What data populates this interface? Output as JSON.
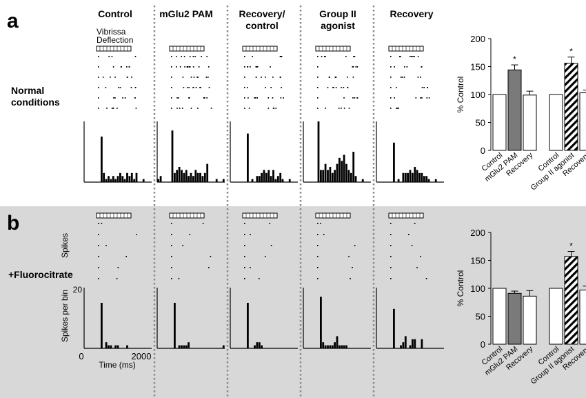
{
  "panels": {
    "a": {
      "letter": "a",
      "row_label_lines": [
        "Normal",
        "conditions"
      ]
    },
    "b": {
      "letter": "b",
      "row_label": "+Fluorocitrate"
    }
  },
  "columns": [
    {
      "title_lines": [
        "Control"
      ]
    },
    {
      "title_lines": [
        "mGlu2 PAM"
      ]
    },
    {
      "title_lines": [
        "Recovery/",
        "control"
      ]
    },
    {
      "title_lines": [
        "Group II",
        "agonist"
      ]
    },
    {
      "title_lines": [
        "Recovery"
      ]
    }
  ],
  "stimulus_label_lines": [
    "Vibrissa",
    "Deflection"
  ],
  "axes_labels": {
    "raster_y": "Spikes",
    "psth_y": "Spikes per bin",
    "psth_y_max": "20",
    "psth_x_min": "0",
    "psth_x_max": "2000",
    "psth_x": "Time (ms)"
  },
  "chart_data": [
    {
      "id": "a",
      "type": "bar",
      "ylabel": "% Control",
      "ylim": [
        0,
        200
      ],
      "yticks": [
        "0",
        "50",
        "100",
        "150",
        "200"
      ],
      "groups": [
        {
          "categories": [
            "Control",
            "mGlu2 PAM",
            "Recovery"
          ],
          "values": [
            100,
            144,
            99
          ],
          "errors": [
            0,
            9,
            7
          ],
          "significant": [
            false,
            true,
            false
          ],
          "fills": [
            "white",
            "gray",
            "white"
          ]
        },
        {
          "categories": [
            "Control",
            "Group II agonist",
            "Recovery"
          ],
          "values": [
            100,
            156,
            103
          ],
          "errors": [
            0,
            11,
            5
          ],
          "significant": [
            false,
            true,
            false
          ],
          "fills": [
            "white",
            "hatch",
            "white"
          ]
        }
      ],
      "significance_marker": "*"
    },
    {
      "id": "b",
      "type": "bar",
      "ylabel": "% Control",
      "ylim": [
        0,
        200
      ],
      "yticks": [
        "0",
        "50",
        "100",
        "150",
        "200"
      ],
      "groups": [
        {
          "categories": [
            "Control",
            "mGlu2 PAM",
            "Recovery"
          ],
          "values": [
            100,
            91,
            86
          ],
          "errors": [
            0,
            4,
            10
          ],
          "significant": [
            false,
            false,
            false
          ],
          "fills": [
            "white",
            "gray",
            "white"
          ]
        },
        {
          "categories": [
            "Control",
            "Group II agonist",
            "Recovery"
          ],
          "values": [
            100,
            157,
            97
          ],
          "errors": [
            0,
            9,
            7
          ],
          "significant": [
            false,
            true,
            false
          ],
          "fills": [
            "white",
            "hatch",
            "white"
          ]
        }
      ],
      "significance_marker": "*"
    },
    {
      "id": "psth-a",
      "type": "bar",
      "xlim": [
        0,
        2000
      ],
      "ylim": [
        0,
        20
      ],
      "series": [
        {
          "values": [
            0,
            0,
            0,
            0,
            0,
            0,
            0,
            15,
            3,
            1,
            2,
            1,
            2,
            1,
            2,
            3,
            2,
            1,
            3,
            2,
            3,
            1,
            3,
            0,
            0,
            1,
            0,
            0,
            0
          ]
        },
        {
          "values": [
            1,
            2,
            0,
            0,
            0,
            0,
            17,
            3,
            4,
            5,
            4,
            3,
            4,
            2,
            3,
            2,
            4,
            3,
            3,
            2,
            3,
            6,
            0,
            0,
            0,
            1,
            0,
            0,
            1
          ]
        },
        {
          "values": [
            0,
            0,
            0,
            0,
            0,
            0,
            0,
            16,
            0,
            1,
            0,
            2,
            2,
            3,
            4,
            3,
            4,
            2,
            4,
            1,
            2,
            3,
            1,
            0,
            0,
            1,
            0,
            0,
            0
          ]
        },
        {
          "values": [
            0,
            0,
            0,
            0,
            0,
            0,
            20,
            4,
            4,
            6,
            4,
            5,
            3,
            4,
            6,
            8,
            7,
            9,
            6,
            4,
            3,
            10,
            2,
            0,
            0,
            1,
            0,
            0,
            0
          ]
        },
        {
          "values": [
            0,
            0,
            0,
            0,
            0,
            0,
            0,
            13,
            0,
            1,
            0,
            3,
            3,
            3,
            4,
            3,
            5,
            4,
            3,
            3,
            2,
            2,
            1,
            0,
            0,
            1,
            0,
            0,
            0
          ]
        }
      ]
    },
    {
      "id": "psth-b",
      "type": "bar",
      "xlim": [
        0,
        2000
      ],
      "ylim": [
        0,
        20
      ],
      "series": [
        {
          "values": [
            0,
            0,
            0,
            0,
            0,
            0,
            0,
            15,
            0,
            2,
            1,
            1,
            0,
            1,
            1,
            0,
            0,
            0,
            1,
            0,
            0,
            0,
            0,
            0,
            0,
            0,
            0,
            0,
            0
          ]
        },
        {
          "values": [
            0,
            0,
            0,
            0,
            0,
            0,
            0,
            15,
            0,
            1,
            1,
            1,
            1,
            2,
            0,
            0,
            0,
            0,
            0,
            0,
            0,
            0,
            0,
            0,
            0,
            0,
            0,
            0,
            1
          ]
        },
        {
          "values": [
            0,
            0,
            0,
            0,
            0,
            0,
            0,
            15,
            0,
            0,
            1,
            2,
            2,
            1,
            0,
            0,
            0,
            0,
            0,
            0,
            0,
            0,
            0,
            0,
            0,
            0,
            0,
            0,
            0
          ]
        },
        {
          "values": [
            0,
            0,
            0,
            0,
            0,
            0,
            0,
            17,
            2,
            1,
            1,
            1,
            1,
            2,
            4,
            1,
            1,
            1,
            1,
            0,
            0,
            0,
            0,
            0,
            0,
            0,
            0,
            0,
            0
          ]
        },
        {
          "values": [
            0,
            0,
            0,
            0,
            0,
            0,
            0,
            13,
            0,
            0,
            1,
            2,
            4,
            0,
            1,
            3,
            3,
            0,
            0,
            3,
            0,
            0,
            0,
            0,
            0,
            0,
            0,
            0,
            0
          ]
        }
      ]
    }
  ]
}
